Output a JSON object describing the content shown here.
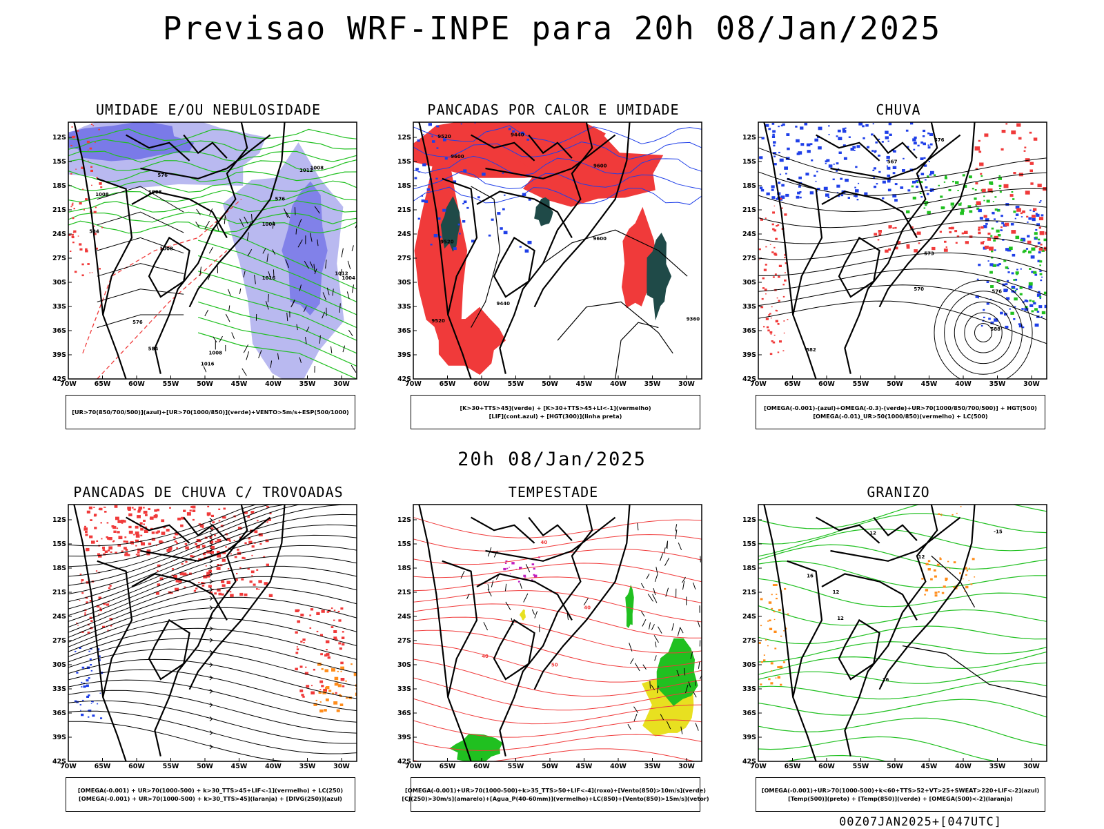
{
  "header": {
    "title": "Previsao WRF-INPE  para 20h 08/Jan/2025"
  },
  "mid_date": "20h 08/Jan/2025",
  "run_id": "00Z07JAN2025+[047UTC]",
  "axes": {
    "lat_labels": [
      "12S",
      "15S",
      "18S",
      "21S",
      "24S",
      "27S",
      "30S",
      "33S",
      "36S",
      "39S",
      "42S"
    ],
    "lon_labels": [
      "70W",
      "65W",
      "60W",
      "55W",
      "50W",
      "45W",
      "40W",
      "35W",
      "30W"
    ]
  },
  "colors": {
    "red": "#f03a3a",
    "blue": "#1f3fe8",
    "green": "#20c020",
    "lavender": "#b9b9f0",
    "lavender_dark": "#6a6ae6",
    "teal": "#1f4a48",
    "orange": "#ff8c1a",
    "yellow": "#e8e020",
    "magenta": "#c020c0",
    "black": "#000000"
  },
  "panels": [
    {
      "title": "UMIDADE E/OU NEBULOSIDADE",
      "legend": [
        "[UR>70(850/700/500)](azul)+[UR>70(1000/850)](verde)+VENTO>5m/s+ESP(500/1000)"
      ],
      "contour_labels": [
        "1008",
        "1008",
        "1004",
        "1008",
        "1012",
        "1016",
        "1016",
        "1008",
        "1008",
        "1004",
        "1012",
        "576",
        "576",
        "576",
        "584",
        "584"
      ]
    },
    {
      "title": "PANCADAS POR CALOR E UMIDADE",
      "legend": [
        "[K>30+TTS>45](verde) + [K>30+TTS>45+LI<-1](vermelho)",
        "[LIF](cont.azul) + [HGT(300)](linha preta)"
      ],
      "contour_labels": [
        "9600",
        "9520",
        "9600",
        "9520",
        "9600",
        "9520",
        "9440",
        "9360",
        "9440"
      ]
    },
    {
      "title": "CHUVA",
      "legend": [
        "[OMEGA(-0.001)-(azul)+OMEGA(-0.3)-(verde)+UR>70(1000/850/700/500)] + HGT(500)",
        "[OMEGA(-0.01)_UR>50(1000/850)(vermelho) + LC(500)"
      ],
      "contour_labels": [
        "582",
        "576",
        "573",
        "570",
        "567",
        "576",
        "588"
      ]
    },
    {
      "title": "PANCADAS DE CHUVA C/ TROVOADAS",
      "legend": [
        "[OMEGA(-0.001) + UR>70(1000-500) + k>30_TTS>45+LIF<-1](vermelho) + LC(250)",
        "[OMEGA(-0.001) + UR>70(1000-500) + k>30_TTS>45](laranja) + [DIVG(250)](azul)"
      ],
      "contour_labels": []
    },
    {
      "title": "TEMPESTADE",
      "legend": [
        "[OMEGA(-0.001)+UR>70(1000-500)+k>35_TTS>50+LIF<-4](roxo)+[Vento(850)>10m/s](verde)",
        "[CJ(250)>30m/s](amarelo)+[Agua_P(40-60mm)](vermelho)+LC(850)+[Vento(850)>15m/s](vetor)"
      ],
      "contour_labels": [
        "40",
        "40",
        "50",
        "40"
      ]
    },
    {
      "title": "GRANIZO",
      "legend": [
        "[OMEGA(-0.001)+UR>70(1000-500)+k<60+TTS>52+VT>25+SWEAT>220+LIF<-2](azul)",
        "[Temp(500)](preto) + [Temp(850)](verde) + [OMEGA(500)<-2](laranja)"
      ],
      "contour_labels": [
        "12",
        "12",
        "16",
        "16",
        "-15",
        "12",
        "12"
      ]
    }
  ]
}
